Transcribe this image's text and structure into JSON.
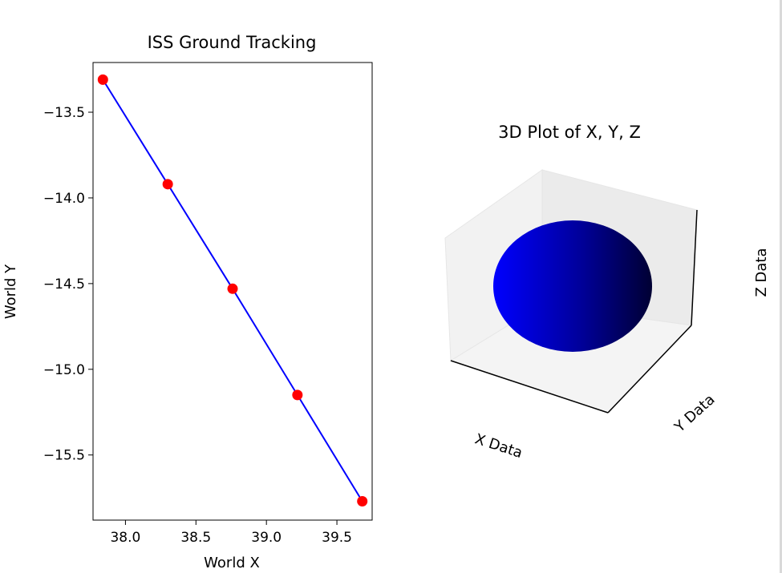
{
  "chart_data": [
    {
      "type": "line",
      "title": "ISS Ground Tracking",
      "xlabel": "World X",
      "ylabel": "World Y",
      "xlim": [
        37.77,
        39.75
      ],
      "ylim": [
        -15.88,
        -13.21
      ],
      "xticks": [
        38.0,
        38.5,
        39.0,
        39.5
      ],
      "xtick_labels": [
        "38.0",
        "38.5",
        "39.0",
        "39.5"
      ],
      "yticks": [
        -13.5,
        -14.0,
        -14.5,
        -15.0,
        -15.5
      ],
      "ytick_labels": [
        "−13.5",
        "−14.0",
        "−14.5",
        "−15.0",
        "−15.5"
      ],
      "series": [
        {
          "x": [
            37.84,
            38.3,
            38.76,
            39.22,
            39.68
          ],
          "y": [
            -13.31,
            -13.92,
            -14.53,
            -15.15,
            -15.77
          ],
          "line_color": "#0000ff",
          "marker_color": "#ff0000"
        }
      ]
    },
    {
      "type": "3d-surface",
      "title": "3D Plot of X, Y, Z",
      "xlabel": "X Data",
      "ylabel": "Y Data",
      "zlabel": "Z Data",
      "surface": "sphere",
      "colors": [
        "#0000ff",
        "#000033"
      ]
    }
  ]
}
